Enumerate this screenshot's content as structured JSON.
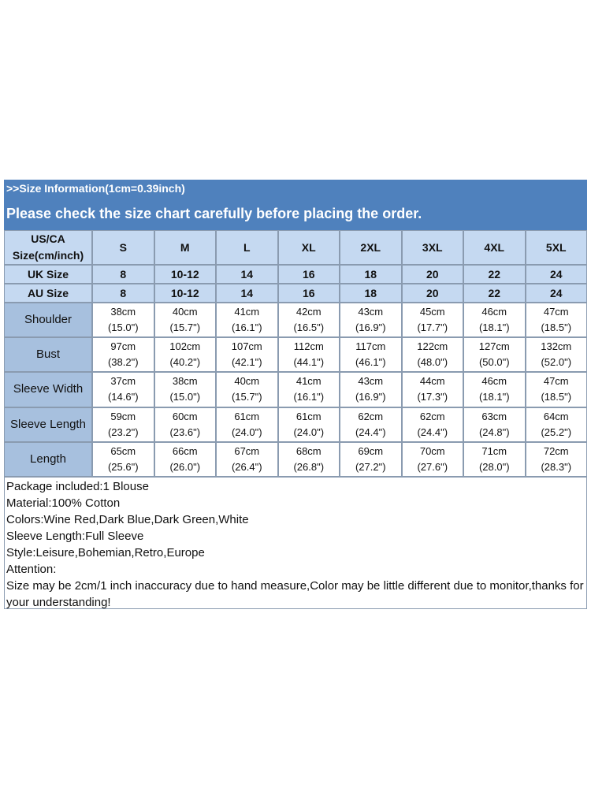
{
  "header": {
    "info": ">>Size Information(1cm=0.39inch)",
    "notice": "Please check the size chart carefully before placing the order."
  },
  "table": {
    "corner": [
      "US/CA",
      "Size(cm/inch)"
    ],
    "sizes": [
      "S",
      "M",
      "L",
      "XL",
      "2XL",
      "3XL",
      "4XL",
      "5XL"
    ],
    "size_rows": [
      {
        "label": "UK Size",
        "values": [
          "8",
          "10-12",
          "14",
          "16",
          "18",
          "20",
          "22",
          "24"
        ]
      },
      {
        "label": "AU Size",
        "values": [
          "8",
          "10-12",
          "14",
          "16",
          "18",
          "20",
          "22",
          "24"
        ]
      }
    ],
    "measure_rows": [
      {
        "label": "Shoulder",
        "cells": [
          [
            "38cm",
            "(15.0\")"
          ],
          [
            "40cm",
            "(15.7\")"
          ],
          [
            "41cm",
            "(16.1\")"
          ],
          [
            "42cm",
            "(16.5\")"
          ],
          [
            "43cm",
            "(16.9\")"
          ],
          [
            "45cm",
            "(17.7\")"
          ],
          [
            "46cm",
            "(18.1\")"
          ],
          [
            "47cm",
            "(18.5\")"
          ]
        ]
      },
      {
        "label": "Bust",
        "cells": [
          [
            "97cm",
            "(38.2\")"
          ],
          [
            "102cm",
            "(40.2\")"
          ],
          [
            "107cm",
            "(42.1\")"
          ],
          [
            "112cm",
            "(44.1\")"
          ],
          [
            "117cm",
            "(46.1\")"
          ],
          [
            "122cm",
            "(48.0\")"
          ],
          [
            "127cm",
            "(50.0\")"
          ],
          [
            "132cm",
            "(52.0\")"
          ]
        ]
      },
      {
        "label": "Sleeve Width",
        "cells": [
          [
            "37cm",
            "(14.6\")"
          ],
          [
            "38cm",
            "(15.0\")"
          ],
          [
            "40cm",
            "(15.7\")"
          ],
          [
            "41cm",
            "(16.1\")"
          ],
          [
            "43cm",
            "(16.9\")"
          ],
          [
            "44cm",
            "(17.3\")"
          ],
          [
            "46cm",
            "(18.1\")"
          ],
          [
            "47cm",
            "(18.5\")"
          ]
        ]
      },
      {
        "label": "Sleeve Length",
        "cells": [
          [
            "59cm",
            "(23.2\")"
          ],
          [
            "60cm",
            "(23.6\")"
          ],
          [
            "61cm",
            "(24.0\")"
          ],
          [
            "61cm",
            "(24.0\")"
          ],
          [
            "62cm",
            "(24.4\")"
          ],
          [
            "62cm",
            "(24.4\")"
          ],
          [
            "63cm",
            "(24.8\")"
          ],
          [
            "64cm",
            "(25.2\")"
          ]
        ]
      },
      {
        "label": "Length",
        "cells": [
          [
            "65cm",
            "(25.6\")"
          ],
          [
            "66cm",
            "(26.0\")"
          ],
          [
            "67cm",
            "(26.4\")"
          ],
          [
            "68cm",
            "(26.8\")"
          ],
          [
            "69cm",
            "(27.2\")"
          ],
          [
            "70cm",
            "(27.6\")"
          ],
          [
            "71cm",
            "(28.0\")"
          ],
          [
            "72cm",
            "(28.3\")"
          ]
        ]
      }
    ]
  },
  "notes": [
    "Package included:1 Blouse",
    "Material:100% Cotton",
    "Colors:Wine Red,Dark Blue,Dark Green,White",
    "Sleeve Length:Full Sleeve",
    "Style:Leisure,Bohemian,Retro,Europe",
    "Attention:",
    "Size may be 2cm/1 inch inaccuracy due to hand measure,Color may be little different due to monitor,thanks for your understanding!"
  ]
}
